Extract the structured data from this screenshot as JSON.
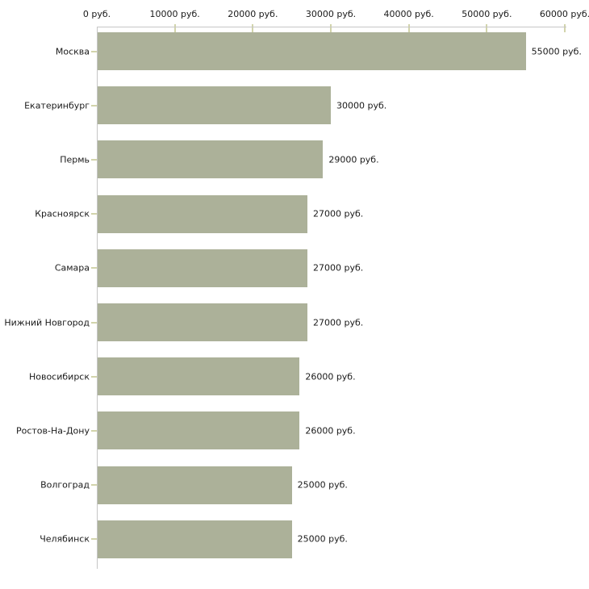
{
  "chart_data": {
    "type": "bar",
    "orientation": "horizontal",
    "title": "",
    "categories": [
      "Москва",
      "Екатеринбург",
      "Пермь",
      "Красноярск",
      "Самара",
      "Нижний Новгород",
      "Новосибирск",
      "Ростов-На-Дону",
      "Волгоград",
      "Челябинск"
    ],
    "values": [
      55000,
      30000,
      29000,
      27000,
      27000,
      27000,
      26000,
      26000,
      25000,
      25000
    ],
    "value_labels": [
      "55000 руб.",
      "30000 руб.",
      "29000 руб.",
      "27000 руб.",
      "27000 руб.",
      "27000 руб.",
      "26000 руб.",
      "26000 руб.",
      "25000 руб.",
      "25000 руб."
    ],
    "x_ticks": [
      {
        "value": 0,
        "label": "0 руб."
      },
      {
        "value": 10000,
        "label": "10000 руб."
      },
      {
        "value": 20000,
        "label": "20000 руб."
      },
      {
        "value": 30000,
        "label": "30000 руб."
      },
      {
        "value": 40000,
        "label": "40000 руб."
      },
      {
        "value": 50000,
        "label": "50000 руб."
      },
      {
        "value": 60000,
        "label": "60000 руб."
      }
    ],
    "xlim": [
      0,
      60000
    ],
    "unit": "руб.",
    "grid": false,
    "legend": false,
    "axis_position": "top",
    "colors": {
      "bar": "#acb199",
      "axis": "#c6c6c6",
      "tick": "#d2d4ab",
      "text": "#1a1a1a",
      "background": "#ffffff"
    }
  }
}
